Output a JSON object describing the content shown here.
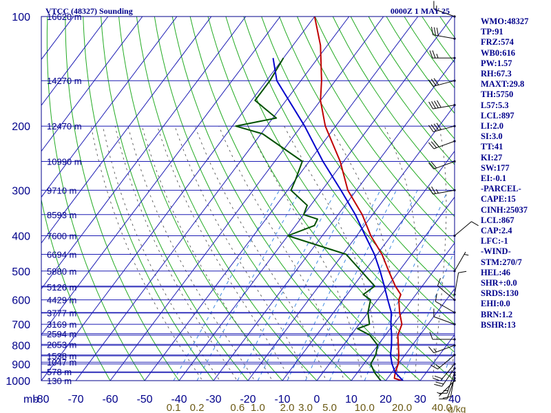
{
  "header": {
    "title": "VTCC (48327) Sounding",
    "valid": "0000Z  1 MAY 25"
  },
  "indices": [
    "WMO:48327",
    "TP:91",
    "FRZ:574",
    "WB0:616",
    "PW:1.57",
    "RH:67.3",
    "MAXT:29.8",
    "TH:5750",
    "L57:5.3",
    "LCL:897",
    "LI:2.0",
    "SI:3.0",
    "TT:41",
    "KI:27",
    "SW:177",
    "EI:-0.1",
    "-PARCEL-",
    "CAPE:15",
    "CINH:25037",
    "LCL:867",
    "CAP:2.4",
    "LFC:-1",
    "-WIND-",
    "STM:270/7",
    "HEL:46",
    "SHR+:0.0",
    "SRDS:130",
    "EHI:0.0",
    "BRN:1.2",
    "BSHR:13"
  ],
  "colors": {
    "frame": "#00008b",
    "isobar": "#1c1cb4",
    "isotherm": "#1c1cb4",
    "dry_adiabat": "#22aa22",
    "moist_adiabat": "#555555",
    "mixing_ratio": "#3b88e0",
    "temperature": "#c00000",
    "dewpoint": "#005000",
    "parcel": "#0000cc",
    "mixing_label": "#6b5a14",
    "wind": "#000000"
  },
  "chart_data": {
    "type": "line",
    "title": "VTCC (48327) Sounding",
    "subtitle": "0000Z  1 MAY 25",
    "y_scale": "log",
    "ylim": [
      1000,
      100
    ],
    "xlim": [
      -80,
      0
    ],
    "y_unit": "mb",
    "mixing_ratio_unit": "g/kg",
    "pressure_ticks": [
      100,
      200,
      300,
      400,
      500,
      600,
      700,
      800,
      900,
      1000
    ],
    "temperature_ticks": [
      -80,
      -70,
      -60,
      -50,
      -40,
      -30,
      -20,
      -10,
      0,
      10,
      20,
      30,
      40
    ],
    "temperature_tick_labels": [
      "-80",
      "-70",
      "-60",
      "-50",
      "-40",
      "-30",
      "-20",
      "-10",
      "0",
      "10",
      "20",
      "30",
      "40"
    ],
    "mixing_ratio_ticks": [
      0.1,
      0.2,
      0.6,
      1.0,
      2.0,
      3.0,
      5.0,
      10.0,
      20.0,
      40.0
    ],
    "mixing_ratio_labels": [
      "0.1",
      "0.2",
      "0.6",
      "1.0",
      "2.0",
      "3.0",
      "5.0",
      "10.0",
      "20.0",
      "40.0"
    ],
    "height_labels": [
      {
        "p": 1000,
        "label": "130 m"
      },
      {
        "p": 946,
        "label": "578 m"
      },
      {
        "p": 890,
        "label": "1047 m"
      },
      {
        "p": 855,
        "label": "1538 m"
      },
      {
        "p": 795,
        "label": "2053 m"
      },
      {
        "p": 743,
        "label": "2594 m"
      },
      {
        "p": 700,
        "label": "3169 m"
      },
      {
        "p": 652,
        "label": "3777 m"
      },
      {
        "p": 600,
        "label": "4429 m"
      },
      {
        "p": 553,
        "label": "5126 m"
      },
      {
        "p": 500,
        "label": "5880 m"
      },
      {
        "p": 450,
        "label": "6694 m"
      },
      {
        "p": 400,
        "label": "7600 m"
      },
      {
        "p": 350,
        "label": "8593 m"
      },
      {
        "p": 300,
        "label": "9710 m"
      },
      {
        "p": 250,
        "label": "10990 m"
      },
      {
        "p": 200,
        "label": "12470 m"
      },
      {
        "p": 150,
        "label": "14270 m"
      },
      {
        "p": 100,
        "label": "16620 m"
      }
    ],
    "series": [
      {
        "key": "temperature",
        "p": [
          1000,
          985,
          950,
          900,
          850,
          800,
          750,
          700,
          650,
          600,
          580,
          550,
          500,
          450,
          400,
          350,
          300,
          250,
          200,
          170,
          150,
          120,
          100
        ],
        "t": [
          24.6,
          22.0,
          21.0,
          20.0,
          18.2,
          16.0,
          13.6,
          12.4,
          9.2,
          6.2,
          5.6,
          2.2,
          -3.0,
          -8.6,
          -15.9,
          -23.0,
          -32.5,
          -41.0,
          -53.0,
          -60.0,
          -64.0,
          -72.0,
          -80.0
        ]
      },
      {
        "key": "dewpoint",
        "p": [
          1000,
          985,
          950,
          900,
          850,
          800,
          750,
          720,
          700,
          650,
          600,
          580,
          550,
          500,
          450,
          400,
          375,
          360,
          350,
          330,
          300,
          280,
          250,
          210,
          200,
          190,
          170,
          150,
          130
        ],
        "t": [
          18.6,
          17.5,
          15.0,
          12.0,
          11.5,
          10.0,
          5.5,
          0.5,
          3.0,
          0.0,
          -2.0,
          -5.3,
          -3.8,
          -11.0,
          -19.0,
          -40.0,
          -34.5,
          -35.0,
          -40.0,
          -41.0,
          -49.0,
          -50.0,
          -52.0,
          -69.5,
          -79.0,
          -69.0,
          -79.0,
          -79.0,
          -80.0
        ]
      },
      {
        "key": "parcel",
        "p": [
          1000,
          950,
          900,
          850,
          800,
          750,
          700,
          650,
          600,
          550,
          500,
          450,
          400,
          350,
          300,
          250,
          200,
          150,
          130
        ],
        "t": [
          25.0,
          21.0,
          18.2,
          15.8,
          14.0,
          11.8,
          9.2,
          6.8,
          3.0,
          -1.0,
          -5.5,
          -10.8,
          -17.5,
          -25.0,
          -34.5,
          -46.0,
          -59.0,
          -77.0,
          -83.0
        ]
      }
    ]
  },
  "wind_barbs": [
    {
      "p": 1000,
      "dir": 225,
      "spd": 5
    },
    {
      "p": 985,
      "dir": 200,
      "spd": 10
    },
    {
      "p": 965,
      "dir": 190,
      "spd": 10
    },
    {
      "p": 950,
      "dir": 200,
      "spd": 15
    },
    {
      "p": 925,
      "dir": 215,
      "spd": 20
    },
    {
      "p": 900,
      "dir": 220,
      "spd": 20
    },
    {
      "p": 850,
      "dir": 230,
      "spd": 15
    },
    {
      "p": 800,
      "dir": 250,
      "spd": 15
    },
    {
      "p": 770,
      "dir": 270,
      "spd": 10
    },
    {
      "p": 700,
      "dir": 290,
      "spd": 10
    },
    {
      "p": 650,
      "dir": 300,
      "spd": 10
    },
    {
      "p": 600,
      "dir": 310,
      "spd": 10
    },
    {
      "p": 580,
      "dir": 10,
      "spd": 10
    },
    {
      "p": 500,
      "dir": 30,
      "spd": 5
    },
    {
      "p": 400,
      "dir": 50,
      "spd": 10
    },
    {
      "p": 300,
      "dir": 260,
      "spd": 25
    },
    {
      "p": 250,
      "dir": 250,
      "spd": 20
    },
    {
      "p": 220,
      "dir": 250,
      "spd": 30
    },
    {
      "p": 200,
      "dir": 255,
      "spd": 40
    },
    {
      "p": 175,
      "dir": 260,
      "spd": 40
    },
    {
      "p": 150,
      "dir": 255,
      "spd": 30
    },
    {
      "p": 130,
      "dir": 270,
      "spd": 25
    },
    {
      "p": 115,
      "dir": 280,
      "spd": 30
    },
    {
      "p": 100,
      "dir": 290,
      "spd": 15
    }
  ]
}
